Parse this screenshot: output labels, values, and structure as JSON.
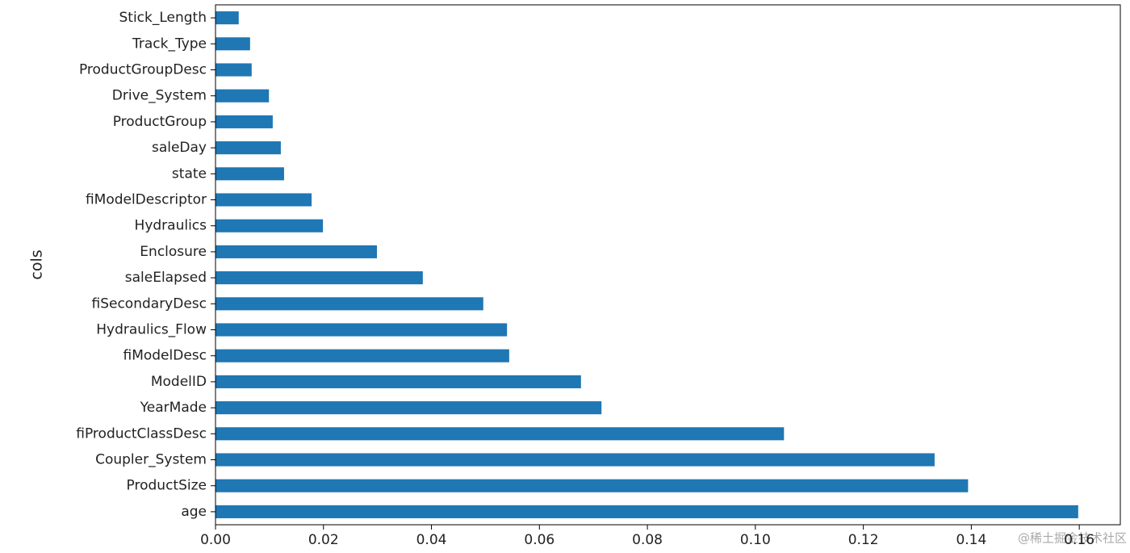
{
  "chart_data": {
    "type": "barh",
    "ylabel": "cols",
    "categories": [
      "Stick_Length",
      "Track_Type",
      "ProductGroupDesc",
      "Drive_System",
      "ProductGroup",
      "saleDay",
      "state",
      "fiModelDescriptor",
      "Hydraulics",
      "Enclosure",
      "saleElapsed",
      "fiSecondaryDesc",
      "Hydraulics_Flow",
      "fiModelDesc",
      "ModelID",
      "YearMade",
      "fiProductClassDesc",
      "Coupler_System",
      "ProductSize",
      "age"
    ],
    "values": [
      0.0043,
      0.0064,
      0.0067,
      0.0099,
      0.0106,
      0.0121,
      0.0127,
      0.0178,
      0.0199,
      0.0299,
      0.0384,
      0.0496,
      0.054,
      0.0544,
      0.0677,
      0.0715,
      0.1053,
      0.1332,
      0.1394,
      0.1598
    ],
    "color": "#1f77b4",
    "xlim": [
      0,
      0.1676
    ],
    "xticks": [
      {
        "value": 0,
        "label": "0.00"
      },
      0.02,
      0.04,
      0.06,
      0.08,
      {
        "value": 0.1,
        "label": "0.10"
      },
      0.12,
      0.14,
      0.16
    ],
    "watermark": "@稀土掘金技术社区"
  }
}
